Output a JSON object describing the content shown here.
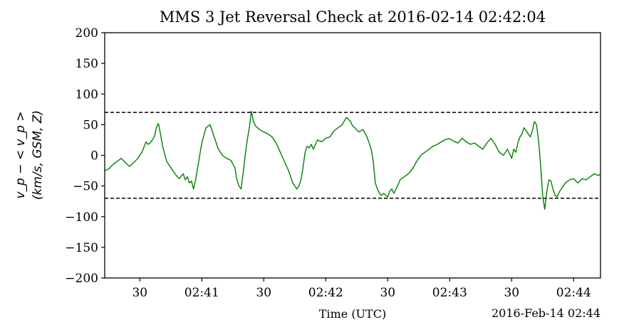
{
  "chart_data": {
    "type": "line",
    "title": "MMS 3 Jet Reversal Check at 2016-02-14 02:42:04",
    "xlabel": "Time (UTC)",
    "ylabel_line1": "v_p − < v_p >",
    "ylabel_line2": "(km/s, GSM, Z)",
    "offset_label": "2016-Feb-14 02:44",
    "x_unit": "seconds after 02:40:00 UTC",
    "xlim": [
      13,
      253
    ],
    "ylim": [
      -200,
      200
    ],
    "yticks": [
      -200,
      -150,
      -100,
      -50,
      0,
      50,
      100,
      150,
      200
    ],
    "ytick_labels": [
      "−200",
      "−150",
      "−100",
      "−50",
      "0",
      "50",
      "100",
      "150",
      "200"
    ],
    "xticks": [
      {
        "t": 30,
        "label": "30"
      },
      {
        "t": 60,
        "label": "02:41"
      },
      {
        "t": 90,
        "label": "30"
      },
      {
        "t": 120,
        "label": "02:42"
      },
      {
        "t": 150,
        "label": "30"
      },
      {
        "t": 180,
        "label": "02:43"
      },
      {
        "t": 210,
        "label": "30"
      },
      {
        "t": 240,
        "label": "02:44"
      }
    ],
    "thresholds": [
      70,
      -70
    ],
    "series": [
      {
        "color": "#008000",
        "x": [
          13,
          15,
          17,
          19,
          21,
          23,
          25,
          27,
          29,
          31,
          33,
          34,
          35,
          37,
          38,
          39,
          40,
          41,
          43,
          45,
          47,
          49,
          51,
          52,
          53,
          54,
          55,
          56,
          57,
          58,
          60,
          62,
          64,
          66,
          68,
          70,
          72,
          74,
          76,
          77,
          78,
          79,
          80,
          81,
          82,
          83,
          84,
          85,
          86,
          88,
          90,
          92,
          94,
          96,
          98,
          100,
          102,
          104,
          106,
          107,
          108,
          109,
          110,
          111,
          112,
          113,
          114,
          116,
          118,
          120,
          122,
          124,
          126,
          128,
          130,
          132,
          133,
          134,
          136,
          138,
          140,
          141,
          142,
          143,
          144,
          145,
          146,
          147,
          148,
          149,
          150,
          151,
          152,
          153,
          154,
          155,
          156,
          158,
          160,
          162,
          164,
          166,
          168,
          170,
          172,
          174,
          176,
          178,
          180,
          182,
          184,
          186,
          188,
          190,
          192,
          194,
          196,
          198,
          200,
          202,
          204,
          206,
          208,
          210,
          211,
          212,
          213,
          214,
          215,
          216,
          217,
          218,
          219,
          220,
          221,
          222,
          223,
          224,
          225,
          226,
          227,
          228,
          229,
          230,
          231,
          232,
          233,
          234,
          235,
          236,
          238,
          240,
          242,
          243,
          244,
          246,
          248,
          250,
          252,
          253
        ],
        "y": [
          -25,
          -22,
          -15,
          -10,
          -5,
          -12,
          -18,
          -12,
          -5,
          5,
          22,
          18,
          20,
          30,
          45,
          52,
          35,
          15,
          -10,
          -20,
          -30,
          -38,
          -30,
          -40,
          -35,
          -45,
          -42,
          -55,
          -40,
          -20,
          20,
          45,
          50,
          30,
          10,
          0,
          -5,
          -8,
          -20,
          -40,
          -50,
          -55,
          -30,
          0,
          25,
          45,
          72,
          55,
          48,
          42,
          38,
          35,
          30,
          20,
          5,
          -10,
          -25,
          -45,
          -55,
          -50,
          -40,
          -20,
          5,
          15,
          12,
          18,
          10,
          25,
          22,
          28,
          30,
          40,
          45,
          50,
          62,
          55,
          48,
          45,
          38,
          42,
          30,
          20,
          10,
          -10,
          -45,
          -55,
          -62,
          -65,
          -62,
          -65,
          -68,
          -58,
          -55,
          -62,
          -55,
          -48,
          -40,
          -35,
          -30,
          -22,
          -10,
          0,
          5,
          10,
          15,
          18,
          22,
          26,
          27,
          23,
          20,
          28,
          22,
          18,
          20,
          15,
          10,
          20,
          28,
          18,
          5,
          0,
          10,
          -5,
          10,
          5,
          20,
          30,
          35,
          45,
          40,
          35,
          30,
          40,
          55,
          50,
          25,
          -15,
          -65,
          -88,
          -60,
          -40,
          -42,
          -55,
          -65,
          -68,
          -60,
          -55,
          -50,
          -45,
          -40,
          -38,
          -45,
          -42,
          -38,
          -40,
          -35,
          -30,
          -33,
          -30
        ]
      }
    ]
  }
}
